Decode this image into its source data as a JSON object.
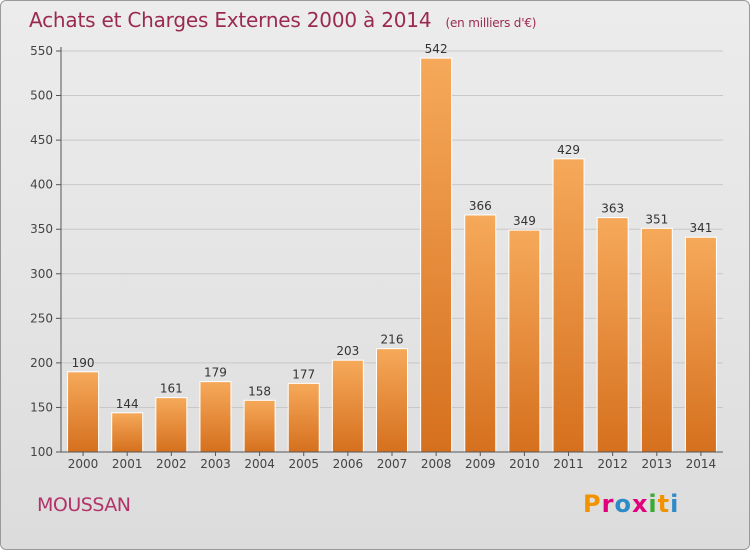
{
  "title": "Achats et Charges Externes 2000 à 2014",
  "unit": "(en milliers d'€)",
  "place": "MOUSSAN",
  "logo": "Proxiti",
  "colors": {
    "title": "#9b2a52",
    "bar_top": "#f6a95a",
    "bar_bottom": "#d5701e",
    "grid": "#c8c8c8"
  },
  "chart_data": {
    "type": "bar",
    "categories": [
      "2000",
      "2001",
      "2002",
      "2003",
      "2004",
      "2005",
      "2006",
      "2007",
      "2008",
      "2009",
      "2010",
      "2011",
      "2012",
      "2013",
      "2014"
    ],
    "values": [
      190,
      144,
      161,
      179,
      158,
      177,
      203,
      216,
      542,
      366,
      349,
      429,
      363,
      351,
      341
    ],
    "ylim": [
      100,
      550
    ],
    "yticks": [
      100,
      150,
      200,
      250,
      300,
      350,
      400,
      450,
      500,
      550
    ],
    "grid": true,
    "data_labels": true
  }
}
